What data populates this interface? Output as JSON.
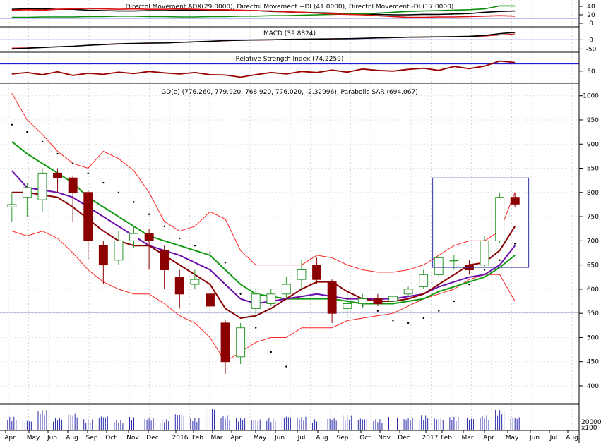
{
  "chart_data": [
    {
      "type": "line",
      "panel": "directional-movement",
      "title": "Directnl Movement ADX(29.0000), Directnl Movement +DI (41.0000), Directnl Movement -DI (17.0000)",
      "ytick_labels": [
        "40",
        "20",
        "0"
      ],
      "yticks": [
        40,
        20,
        0
      ],
      "ylim": [
        -5,
        50
      ],
      "reference_line": 12,
      "colors": {
        "adx": "#000000",
        "plus_di": "#0a8c0a",
        "minus_di": "#dd1111"
      },
      "series": [
        {
          "key": "adx",
          "values": [
            33,
            34,
            34,
            33,
            33,
            31,
            30,
            29,
            29,
            30,
            30,
            31,
            31,
            31,
            30,
            30,
            30,
            28,
            27,
            26,
            25,
            24,
            23,
            22,
            21,
            20,
            20,
            21,
            21,
            22,
            23,
            26,
            28,
            29
          ]
        },
        {
          "key": "plus_di",
          "values": [
            14,
            14,
            15,
            15,
            15,
            16,
            16,
            17,
            17,
            16,
            16,
            15,
            15,
            16,
            16,
            17,
            17,
            18,
            18,
            19,
            20,
            21,
            22,
            22,
            24,
            26,
            28,
            29,
            30,
            31,
            32,
            34,
            41,
            41
          ]
        },
        {
          "key": "minus_di",
          "values": [
            31,
            32,
            31,
            33,
            34,
            35,
            34,
            33,
            34,
            33,
            33,
            34,
            33,
            32,
            32,
            31,
            30,
            29,
            27,
            26,
            24,
            22,
            21,
            20,
            18,
            16,
            14,
            14,
            15,
            15,
            16,
            17,
            18,
            17
          ]
        }
      ]
    },
    {
      "type": "line",
      "panel": "macd",
      "title": "MACD (39.8824)",
      "ytick_labels": [
        "0",
        "-50"
      ],
      "yticks": [
        0,
        -50
      ],
      "ylim": [
        -60,
        55
      ],
      "colors": {
        "macd": "#000000",
        "signal": "#cc0000",
        "zero": "#0000cc"
      },
      "series": [
        {
          "key": "macd",
          "values": [
            -50,
            -46,
            -42,
            -38,
            -35,
            -30,
            -26,
            -22,
            -20,
            -18,
            -17,
            -14,
            -11,
            -8,
            -4,
            -2,
            -1,
            0,
            2,
            3,
            4,
            5,
            6,
            8,
            10,
            12,
            14,
            15,
            16,
            17,
            19,
            23,
            33,
            40
          ]
        },
        {
          "key": "signal",
          "values": [
            -45,
            -44,
            -41,
            -38,
            -35,
            -31,
            -27,
            -24,
            -21,
            -19,
            -18,
            -15,
            -12,
            -9,
            -6,
            -3,
            -2,
            -1,
            1,
            2,
            3,
            4,
            5,
            7,
            9,
            11,
            13,
            14,
            15,
            16,
            17,
            20,
            26,
            32
          ]
        }
      ]
    },
    {
      "type": "line",
      "panel": "rsi",
      "title": "Relative Strength Index (74.2259)",
      "ytick_labels": [
        "50"
      ],
      "yticks": [
        50
      ],
      "ylim": [
        20,
        95
      ],
      "reference_line": 70,
      "colors": {
        "rsi": "#990000",
        "reference": "#0000cc"
      },
      "series": [
        {
          "key": "rsi",
          "values": [
            42,
            46,
            40,
            48,
            38,
            44,
            41,
            47,
            43,
            49,
            45,
            42,
            46,
            40,
            39,
            33,
            40,
            46,
            42,
            49,
            46,
            53,
            47,
            56,
            52,
            50,
            55,
            58,
            52,
            63,
            57,
            64,
            78,
            74
          ]
        }
      ]
    },
    {
      "type": "candlestick",
      "panel": "price",
      "title": "GD(e) (776.260, 779.920, 768.920, 776.020, -2.32996), Parabolic SAR (694.067)",
      "ylim": [
        365,
        1020
      ],
      "yticks": [
        400,
        450,
        500,
        550,
        600,
        650,
        700,
        750,
        800,
        850,
        900,
        950,
        1000
      ],
      "ytick_labels": [
        "400",
        "450",
        "500",
        "550",
        "600",
        "650",
        "700",
        "750",
        "800",
        "850",
        "900",
        "950",
        "1000"
      ],
      "horizontal_line": 552,
      "colors": {
        "up": "#2e9a2e",
        "down": "#8b0000",
        "bollinger": "#ff2222",
        "ma_fast": "#8b0000",
        "ma_mid": "#6a0dad",
        "ma_slow": "#119a11",
        "sar": "#000000",
        "support": "#1a1aa8",
        "highlight_box": "#3333aa"
      },
      "x_labels": [
        "Apr",
        "May",
        "Jun",
        "Aug",
        "Sep",
        "Oct",
        "Nov",
        "Dec",
        "2016",
        "Feb",
        "Mar",
        "Apr",
        "May",
        "Jun",
        "Jul",
        "Aug",
        "Sep",
        "Oct",
        "Nov",
        "Dec",
        "2017",
        "Feb",
        "Mar",
        "Apr",
        "May",
        "Jun",
        "Jul",
        "Aug"
      ],
      "candles": [
        {
          "o": 770,
          "c": 775,
          "h": 800,
          "l": 740
        },
        {
          "o": 790,
          "c": 810,
          "h": 820,
          "l": 750
        },
        {
          "o": 785,
          "c": 840,
          "h": 850,
          "l": 760
        },
        {
          "o": 840,
          "c": 830,
          "h": 850,
          "l": 800
        },
        {
          "o": 830,
          "c": 800,
          "h": 835,
          "l": 740
        },
        {
          "o": 800,
          "c": 700,
          "h": 805,
          "l": 660
        },
        {
          "o": 690,
          "c": 650,
          "h": 700,
          "l": 610
        },
        {
          "o": 660,
          "c": 700,
          "h": 720,
          "l": 650
        },
        {
          "o": 700,
          "c": 715,
          "h": 730,
          "l": 685
        },
        {
          "o": 715,
          "c": 700,
          "h": 725,
          "l": 640
        },
        {
          "o": 680,
          "c": 640,
          "h": 690,
          "l": 600
        },
        {
          "o": 625,
          "c": 590,
          "h": 640,
          "l": 560
        },
        {
          "o": 610,
          "c": 620,
          "h": 640,
          "l": 600
        },
        {
          "o": 590,
          "c": 565,
          "h": 600,
          "l": 555
        },
        {
          "o": 530,
          "c": 450,
          "h": 535,
          "l": 425
        },
        {
          "o": 460,
          "c": 520,
          "h": 530,
          "l": 445
        },
        {
          "o": 560,
          "c": 590,
          "h": 600,
          "l": 540
        },
        {
          "o": 570,
          "c": 590,
          "h": 600,
          "l": 565
        },
        {
          "o": 590,
          "c": 610,
          "h": 625,
          "l": 580
        },
        {
          "o": 620,
          "c": 640,
          "h": 660,
          "l": 600
        },
        {
          "o": 650,
          "c": 620,
          "h": 665,
          "l": 610
        },
        {
          "o": 615,
          "c": 550,
          "h": 620,
          "l": 530
        },
        {
          "o": 560,
          "c": 570,
          "h": 590,
          "l": 540
        },
        {
          "o": 570,
          "c": 580,
          "h": 590,
          "l": 560
        },
        {
          "o": 580,
          "c": 570,
          "h": 590,
          "l": 565
        },
        {
          "o": 575,
          "c": 585,
          "h": 590,
          "l": 570
        },
        {
          "o": 590,
          "c": 600,
          "h": 605,
          "l": 585
        },
        {
          "o": 605,
          "c": 630,
          "h": 640,
          "l": 600
        },
        {
          "o": 630,
          "c": 665,
          "h": 670,
          "l": 625
        },
        {
          "o": 660,
          "c": 660,
          "h": 670,
          "l": 640
        },
        {
          "o": 650,
          "c": 640,
          "h": 660,
          "l": 630
        },
        {
          "o": 650,
          "c": 700,
          "h": 710,
          "l": 645
        },
        {
          "o": 700,
          "c": 790,
          "h": 800,
          "l": 695
        },
        {
          "o": 790,
          "c": 776,
          "h": 800,
          "l": 769
        }
      ],
      "sar": [
        940,
        925,
        905,
        880,
        860,
        840,
        820,
        800,
        780,
        755,
        730,
        705,
        690,
        675,
        655,
        590,
        520,
        470,
        440,
        600,
        640,
        610,
        580,
        565,
        555,
        535,
        530,
        540,
        555,
        575,
        610,
        640,
        660,
        694
      ],
      "bb_upper": [
        1005,
        950,
        920,
        885,
        860,
        850,
        885,
        870,
        845,
        800,
        740,
        720,
        730,
        760,
        745,
        680,
        650,
        650,
        650,
        650,
        670,
        665,
        650,
        640,
        635,
        635,
        640,
        650,
        670,
        690,
        700,
        700,
        720,
        800
      ],
      "bb_lower": [
        720,
        710,
        720,
        705,
        675,
        640,
        615,
        600,
        590,
        590,
        570,
        545,
        530,
        500,
        450,
        470,
        490,
        500,
        500,
        520,
        520,
        520,
        535,
        540,
        545,
        550,
        565,
        580,
        590,
        600,
        620,
        630,
        630,
        575
      ],
      "ma_fast": [
        800,
        800,
        795,
        790,
        770,
        745,
        720,
        700,
        690,
        690,
        670,
        650,
        630,
        610,
        560,
        540,
        545,
        560,
        580,
        600,
        615,
        615,
        595,
        580,
        575,
        575,
        580,
        590,
        610,
        630,
        650,
        655,
        680,
        730
      ],
      "ma_mid": [
        845,
        810,
        805,
        800,
        790,
        770,
        750,
        730,
        710,
        690,
        680,
        670,
        655,
        640,
        610,
        580,
        570,
        575,
        580,
        585,
        590,
        585,
        580,
        580,
        580,
        580,
        585,
        590,
        605,
        615,
        625,
        630,
        650,
        690
      ],
      "ma_slow": [
        905,
        880,
        860,
        840,
        820,
        790,
        770,
        750,
        730,
        710,
        700,
        690,
        680,
        670,
        640,
        610,
        590,
        585,
        580,
        580,
        580,
        580,
        575,
        570,
        570,
        570,
        575,
        580,
        595,
        605,
        615,
        625,
        645,
        670
      ],
      "volume": [
        0.55,
        0.4,
        0.85,
        0.5,
        0.7,
        0.45,
        0.6,
        0.4,
        0.55,
        0.5,
        0.45,
        0.7,
        0.5,
        0.95,
        0.6,
        0.5,
        0.45,
        0.5,
        0.6,
        0.55,
        0.45,
        0.5,
        0.6,
        0.5,
        0.45,
        0.55,
        0.5,
        0.6,
        0.5,
        0.55,
        0.5,
        0.6,
        0.85,
        0.55
      ],
      "volume_tick_label": "20000",
      "volume_unit_label": "x100"
    }
  ]
}
